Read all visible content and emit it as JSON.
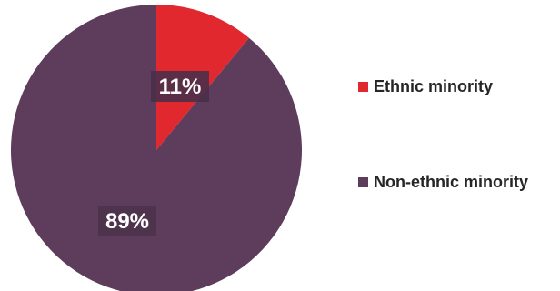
{
  "chart_data": {
    "type": "pie",
    "title": "",
    "slices": [
      {
        "label": "Ethnic minority",
        "value": 11,
        "display": "11%",
        "color": "#e0282e"
      },
      {
        "label": "Non-ethnic minority",
        "value": 89,
        "display": "89%",
        "color": "#5e3c5c"
      }
    ],
    "start_angle_deg": 0,
    "direction": "clockwise",
    "legend_position": "right"
  }
}
